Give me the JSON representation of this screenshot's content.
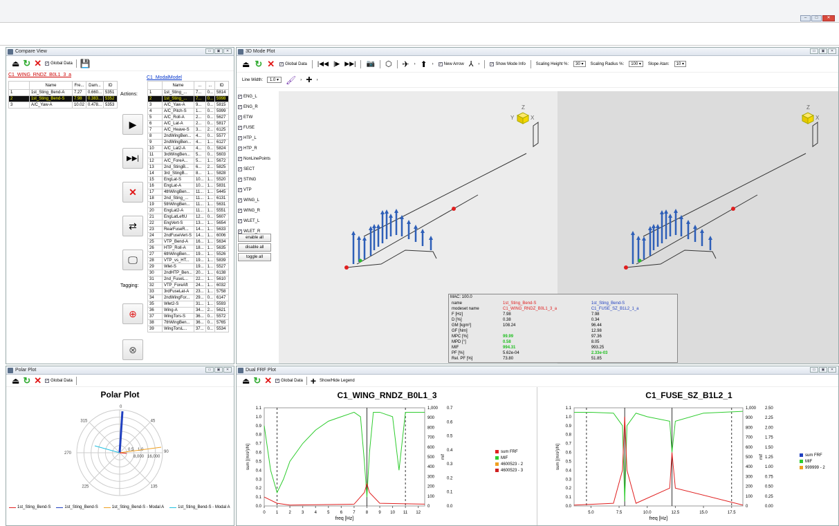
{
  "window": {
    "minimize": "–",
    "maximize": "□",
    "close": "✕"
  },
  "compare": {
    "title": "Compare View",
    "global_data": "Global Data",
    "left_model": "C1_WING_RNDZ_B0L1_3_a",
    "right_model": "C1_ModalModel",
    "left_cols": [
      "Name",
      "Fre...",
      "Dam...",
      "ID"
    ],
    "left_rows": [
      [
        "1",
        "1st_Sting_Bend-A",
        "7.27",
        "0.660...",
        "5351"
      ],
      [
        "2",
        "1st_Sting_Bend-S",
        "7.98",
        "0.383...",
        "5352"
      ],
      [
        "3",
        "A/C_Yaw-A",
        "10.02",
        "0.478...",
        "5353"
      ]
    ],
    "actions_label": "Actions:",
    "tagging_label": "Tagging:",
    "right_cols": [
      "Name",
      "...",
      "...",
      "ID"
    ],
    "right_rows": [
      [
        "1",
        "1st_Sting_...",
        "7...",
        "0...",
        "5814"
      ],
      [
        "2",
        "1st_Sting_...",
        "7...",
        "0...",
        "5998"
      ],
      [
        "3",
        "A/C_Yaw-A",
        "9...",
        "0...",
        "5815"
      ],
      [
        "4",
        "A/C_Pitch-S",
        "1...",
        "0...",
        "5999"
      ],
      [
        "5",
        "A/C_Roll-A",
        "2...",
        "0...",
        "5627"
      ],
      [
        "6",
        "A/C_Lat-A",
        "2...",
        "0...",
        "5817"
      ],
      [
        "7",
        "A/C_Heave-S",
        "3...",
        "2...",
        "6125"
      ],
      [
        "8",
        "2ndWingBen...",
        "4...",
        "0...",
        "5577"
      ],
      [
        "9",
        "2ndWingBen...",
        "4...",
        "1...",
        "6127"
      ],
      [
        "10",
        "A/C_Lat2-A",
        "4...",
        "0...",
        "5824"
      ],
      [
        "11",
        "3rdWingBen...",
        "5...",
        "0...",
        "5603"
      ],
      [
        "12",
        "A/C_ForeA...",
        "5...",
        "1...",
        "5672"
      ],
      [
        "13",
        "2nd_StingB...",
        "6...",
        "2...",
        "5825"
      ],
      [
        "14",
        "3rd_StingB...",
        "8...",
        "1...",
        "5828"
      ],
      [
        "15",
        "EngLat-S",
        "10...",
        "1...",
        "5520"
      ],
      [
        "16",
        "EngLat-A",
        "10...",
        "1...",
        "5831"
      ],
      [
        "17",
        "4thWingBen...",
        "11...",
        "1...",
        "5445"
      ],
      [
        "18",
        "2nd_Sting_...",
        "11...",
        "1...",
        "6131"
      ],
      [
        "19",
        "5thWingBen...",
        "11...",
        "1...",
        "5631"
      ],
      [
        "20",
        "EngLat2-A",
        "11...",
        "1...",
        "5551"
      ],
      [
        "21",
        "EngLatLeftU",
        "12...",
        "0...",
        "5607"
      ],
      [
        "22",
        "EngVert-S",
        "13...",
        "1...",
        "5654"
      ],
      [
        "23",
        "RearFuseR...",
        "14...",
        "1...",
        "5633"
      ],
      [
        "24",
        "2ndFuseVert-S",
        "14...",
        "1...",
        "6006"
      ],
      [
        "25",
        "VTP_Bend-A",
        "16...",
        "1...",
        "5634"
      ],
      [
        "26",
        "HTP_Roll-A",
        "18...",
        "1...",
        "5635"
      ],
      [
        "27",
        "6thWingBen...",
        "19...",
        "1...",
        "5526"
      ],
      [
        "28",
        "VTP_vs_HT...",
        "19...",
        "1...",
        "5839"
      ],
      [
        "29",
        "Wlet-S",
        "19...",
        "1...",
        "5527"
      ],
      [
        "30",
        "2ndHTP_Ben...",
        "20...",
        "1...",
        "6138"
      ],
      [
        "31",
        "2nd_FuseL...",
        "22...",
        "1...",
        "5610"
      ],
      [
        "32",
        "VTP_ForeAft",
        "24...",
        "1...",
        "6032"
      ],
      [
        "33",
        "3rdFuseLat-A",
        "23...",
        "1...",
        "5758"
      ],
      [
        "34",
        "2ndWingFor...",
        "29...",
        "0...",
        "6147"
      ],
      [
        "35",
        "Wlet2-S",
        "31...",
        "1...",
        "5593"
      ],
      [
        "36",
        "Wing-A",
        "34...",
        "2...",
        "5621"
      ],
      [
        "37",
        "WingTors-S",
        "36...",
        "0...",
        "5572"
      ],
      [
        "38",
        "7thWingBen...",
        "36...",
        "0...",
        "5765"
      ],
      [
        "39",
        "WingTorsL...",
        "37...",
        "0...",
        "5534"
      ]
    ]
  },
  "mode3d": {
    "title": "3D Mode Plot",
    "global_data": "Global Data",
    "new_arrow": "New Arrow",
    "show_mode_info": "Show Mode Info",
    "scaling_height_label": "Scaling Height %:",
    "scaling_height": "30",
    "scaling_radius_label": "Scaling Radius %:",
    "scaling_radius": "100",
    "slope_label": "Slope Atan:",
    "slope": "10",
    "line_width_label": "Line Width:",
    "line_width": "1.0",
    "components": [
      "ENG_L",
      "ENG_R",
      "ETW",
      "FUSE",
      "HTP_L",
      "HTP_R",
      "NonLinePoints",
      "SECT",
      "STING",
      "VTP",
      "WING_L",
      "WING_R",
      "WLET_L",
      "WLET_R"
    ],
    "enable_all": "enable all",
    "disable_all": "disable all",
    "toggle_all": "toggle all",
    "mac_header": "MAC: 100.0",
    "mac_rows": [
      [
        "name",
        "1st_Sting_Bend-S",
        "1st_Sting_Bend-S"
      ],
      [
        "modeset name",
        "C1_WING_RNDZ_B0L1_3_a",
        "C1_FUSE_SZ_B1L2_1_a"
      ],
      [
        "F [Hz]",
        "7.98",
        "7.98"
      ],
      [
        "D [%]",
        "0.38",
        "0.34"
      ],
      [
        "GM [kgm²]",
        "108.24",
        "96.44"
      ],
      [
        "GF [Nm]",
        "",
        "12.98"
      ],
      [
        "MPC [%]",
        "99.99",
        "97.36"
      ],
      [
        "MPD [°]",
        "0.58",
        "8.05"
      ],
      [
        "MIF",
        "994.31",
        "993.25"
      ],
      [
        "PF [%]",
        "5.62e-04",
        "2.33e-03"
      ],
      [
        "Rel. PF [%]",
        "73.80",
        "51.85"
      ]
    ]
  },
  "polar": {
    "title": "Polar Plot",
    "global_data": "Global Data",
    "chart_title": "Polar Plot",
    "angles": [
      "0",
      "45",
      "90",
      "135",
      "180",
      "225",
      "270",
      "315"
    ],
    "radii": [
      "0.5",
      "1.0",
      "8,000",
      "16,000"
    ],
    "legend": [
      "1st_Sting_Bend-S",
      "1st_Sting_Bend-S",
      "1st_Sting_Bend-S - Modal A",
      "1st_Sting_Bend-S - Modal A"
    ],
    "colors": [
      "#e02020",
      "#2040c0",
      "#f0a020",
      "#20c0e0"
    ]
  },
  "frf": {
    "title": "Dual FRF Plot",
    "global_data": "Global Data",
    "show_hide_legend": "Show/Hide Legend",
    "xlabel": "freq [Hz]",
    "left": {
      "title": "C1_WING_RNDZ_B0L1_3",
      "xticks": [
        "0",
        "1",
        "2",
        "3",
        "4",
        "5",
        "6",
        "7",
        "8",
        "9",
        "10",
        "11",
        "12"
      ],
      "y1ticks": [
        "0.0",
        "0.1",
        "0.2",
        "0.3",
        "0.4",
        "0.5",
        "0.6",
        "0.7",
        "0.8",
        "0.9",
        "1.0",
        "1.1"
      ],
      "y2ticks": [
        "0",
        "100",
        "200",
        "300",
        "400",
        "500",
        "600",
        "700",
        "800",
        "900",
        "1,000"
      ],
      "y3ticks": [
        "0.0",
        "0.1",
        "0.2",
        "0.3",
        "0.4",
        "0.5",
        "0.6",
        "0.7"
      ],
      "ylabel1": "sum [(m/s²)/N]",
      "ylabel2": "mif",
      "ylabel3": "ch [(m/s²)/N]",
      "legend": [
        "sum FRF",
        "MIF",
        "4600523 - 2",
        "4600523 - 3"
      ]
    },
    "right": {
      "title": "C1_FUSE_SZ_B1L2_1",
      "xticks": [
        "5.0",
        "7.5",
        "10.0",
        "12.5",
        "15.0",
        "17.5"
      ],
      "y1ticks": [
        "0.0",
        "0.1",
        "0.2",
        "0.3",
        "0.4",
        "0.5",
        "0.6",
        "0.7",
        "0.8",
        "0.9",
        "1.0",
        "1.1"
      ],
      "y2ticks": [
        "0",
        "100",
        "200",
        "300",
        "400",
        "500",
        "600",
        "700",
        "800",
        "900",
        "1,000"
      ],
      "y3ticks": [
        "0.00",
        "0.25",
        "0.50",
        "0.75",
        "1.00",
        "1.25",
        "1.50",
        "1.75",
        "2.00",
        "2.25",
        "2.50"
      ],
      "ylabel1": "sum [(m/s²)/N]",
      "ylabel2": "mif",
      "ylabel3": "ch [(m/s²)/N]",
      "legend": [
        "sum FRF",
        "MIF",
        "999999 - 2"
      ]
    }
  },
  "chart_data": [
    {
      "type": "line",
      "title": "C1_WING_RNDZ_B0L1_3",
      "xlabel": "freq [Hz]",
      "ylabel": "sum [(m/s²)/N]",
      "xlim": [
        0,
        12.5
      ],
      "ylim": [
        0,
        1.1
      ],
      "series": [
        {
          "name": "MIF",
          "x": [
            0,
            0.5,
            1,
            1.5,
            2,
            3,
            4,
            5,
            6,
            7,
            7.5,
            7.8,
            8,
            8.2,
            8.5,
            9,
            10,
            10.5,
            11,
            12,
            12.5
          ],
          "values": [
            0.9,
            0.4,
            0.15,
            0.3,
            0.5,
            0.7,
            0.85,
            0.95,
            1.0,
            1.05,
            1.0,
            0.5,
            0.1,
            0.6,
            1.05,
            1.05,
            1.0,
            0.4,
            1.05,
            1.05,
            1.05
          ]
        },
        {
          "name": "sum FRF",
          "x": [
            0,
            1,
            2,
            7,
            7.8,
            8,
            8.2,
            9,
            12.5
          ],
          "values": [
            0.1,
            0.03,
            0.01,
            0.02,
            0.15,
            0.25,
            0.15,
            0.03,
            0.02
          ]
        }
      ]
    },
    {
      "type": "line",
      "title": "C1_FUSE_SZ_B1L2_1",
      "xlabel": "freq [Hz]",
      "ylabel": "sum [(m/s²)/N]",
      "xlim": [
        3.5,
        18.5
      ],
      "ylim": [
        0,
        1.1
      ],
      "series": [
        {
          "name": "MIF",
          "x": [
            3.5,
            5,
            7,
            7.8,
            8,
            8.2,
            9,
            10,
            12,
            12.2,
            12.5,
            15,
            18.5
          ],
          "values": [
            1.05,
            1.05,
            1.04,
            0.9,
            0.05,
            0.9,
            1.04,
            1.0,
            0.95,
            0.6,
            0.95,
            1.04,
            1.06
          ]
        },
        {
          "name": "sum FRF",
          "x": [
            3.5,
            7,
            7.8,
            8,
            8.2,
            9,
            12,
            12.2,
            12.5,
            18.5
          ],
          "values": [
            0.01,
            0.03,
            0.4,
            1.0,
            0.4,
            0.03,
            0.2,
            0.6,
            0.2,
            0.01
          ]
        }
      ]
    }
  ]
}
